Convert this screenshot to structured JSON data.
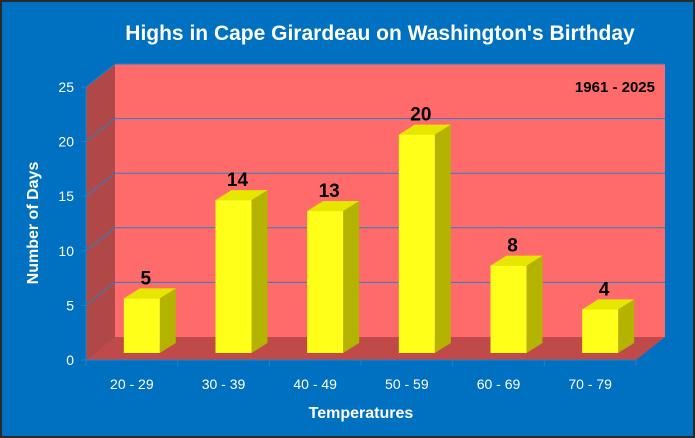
{
  "chart_data": {
    "type": "bar",
    "title": "Highs in Cape Girardeau on Washington's Birthday",
    "annotation": "1961 - 2025",
    "xlabel": "Temperatures",
    "ylabel": "Number of Days",
    "categories": [
      "20 - 29",
      "30 - 39",
      "40 - 49",
      "50 - 59",
      "60 - 69",
      "70 - 79"
    ],
    "values": [
      5,
      14,
      13,
      20,
      8,
      4
    ],
    "ylim": [
      0,
      25
    ],
    "yticks": [
      "0",
      "5",
      "10",
      "15",
      "20",
      "25"
    ],
    "grid": true,
    "legend": "none",
    "colors": {
      "background": "#0070C0",
      "plot_back_wall": "#FF6B6B",
      "plot_side_wall": "#B04848",
      "plot_floor": "#C04A4A",
      "bar_front": "#FFFF1A",
      "bar_top": "#E6E600",
      "bar_side": "#B3B300",
      "gridline": "#2a7fc0"
    }
  }
}
